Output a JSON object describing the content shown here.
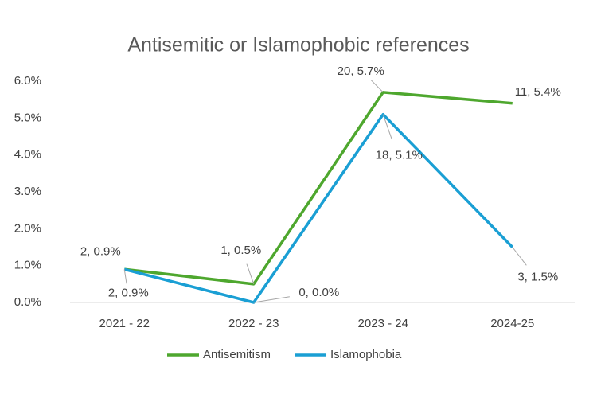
{
  "chart_data": {
    "type": "line",
    "title": "Antisemitic or Islamophobic references",
    "categories": [
      "2021 - 22",
      "2022 - 23",
      "2023 - 24",
      "2024-25"
    ],
    "series": [
      {
        "name": "Antisemitism",
        "color": "#4ea72e",
        "values": [
          0.9,
          0.5,
          5.7,
          5.4
        ],
        "value_labels": [
          "2, 0.9%",
          "1, 0.5%",
          "20, 5.7%",
          "11, 5.4%"
        ]
      },
      {
        "name": "Islamophobia",
        "color": "#1a9fd4",
        "values": [
          0.9,
          0.0,
          5.1,
          1.5
        ],
        "value_labels": [
          "2, 0.9%",
          "0, 0.0%",
          "18, 5.1%",
          "3, 1.5%"
        ]
      }
    ],
    "ylim": [
      0,
      6
    ],
    "yticks": [
      {
        "value": 0,
        "label": "0.0%"
      },
      {
        "value": 1,
        "label": "1.0%"
      },
      {
        "value": 2,
        "label": "2.0%"
      },
      {
        "value": 3,
        "label": "3.0%"
      },
      {
        "value": 4,
        "label": "4.0%"
      },
      {
        "value": 5,
        "label": "5.0%"
      },
      {
        "value": 6,
        "label": "6.0%"
      }
    ],
    "grid": false,
    "legend": "bottom"
  }
}
